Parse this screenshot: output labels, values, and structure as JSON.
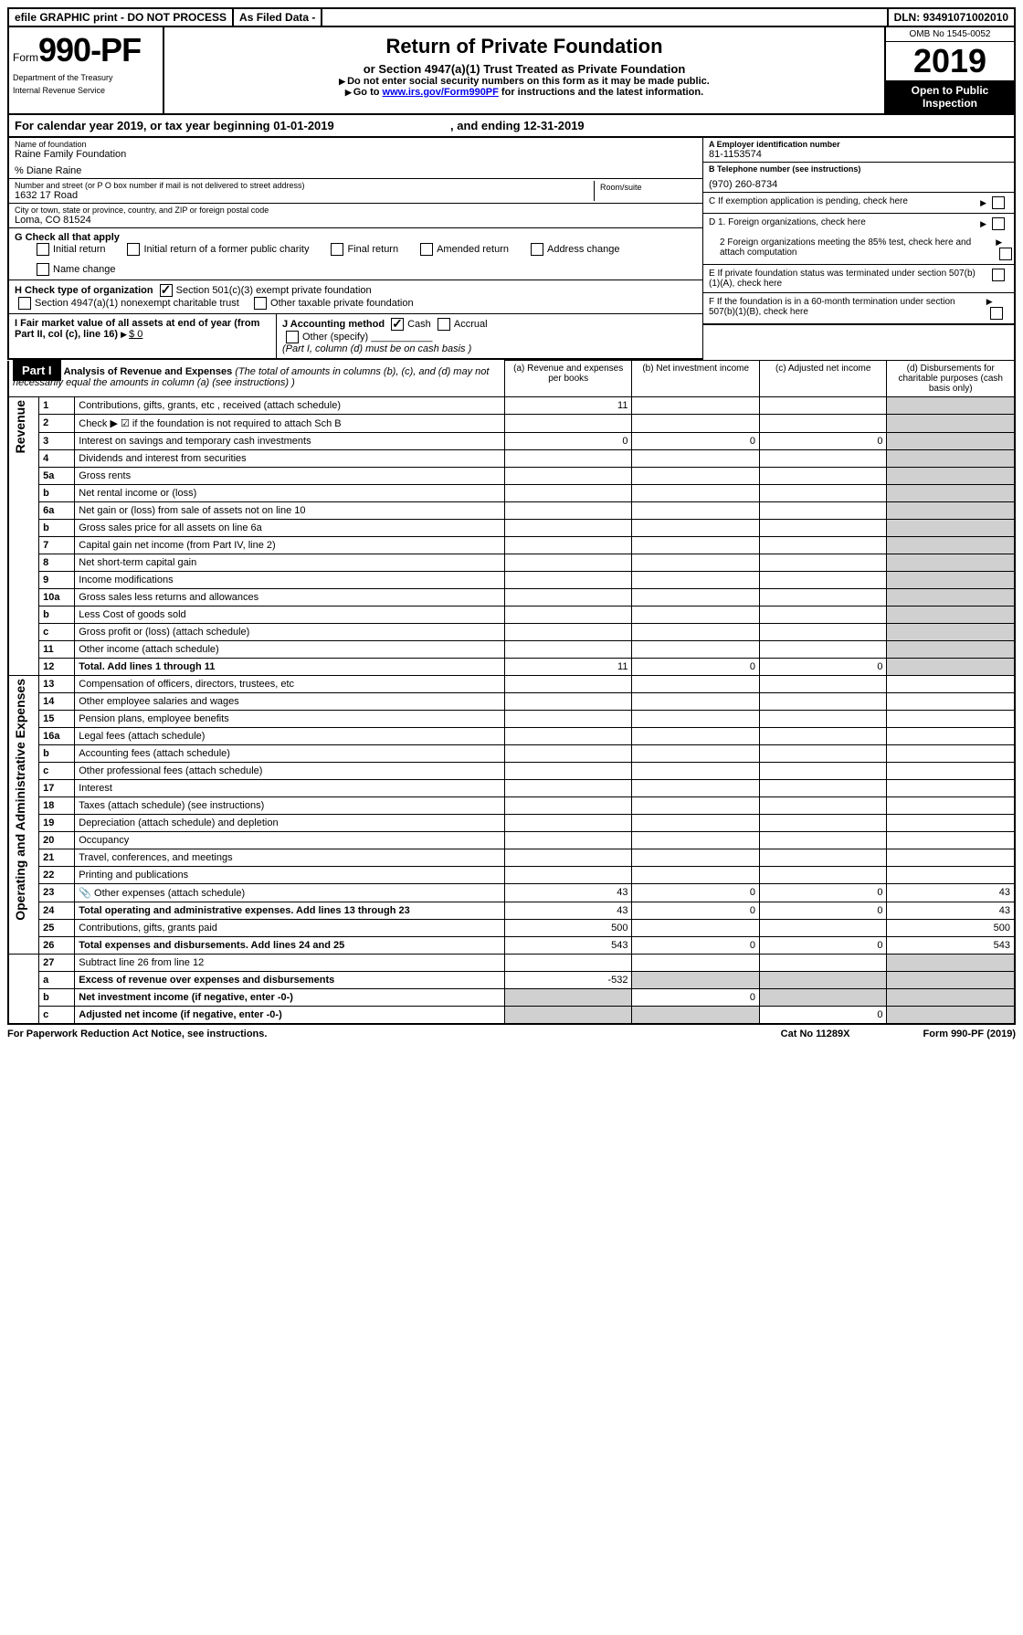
{
  "top": {
    "efile": "efile GRAPHIC print - DO NOT PROCESS",
    "asfiled": "As Filed Data -",
    "dln": "DLN: 93491071002010"
  },
  "header": {
    "form_prefix": "Form",
    "form_number": "990-PF",
    "dept1": "Department of the Treasury",
    "dept2": "Internal Revenue Service",
    "title": "Return of Private Foundation",
    "subtitle": "or Section 4947(a)(1) Trust Treated as Private Foundation",
    "instr1": "Do not enter social security numbers on this form as it may be made public.",
    "instr2_a": "Go to ",
    "instr2_link": "www.irs.gov/Form990PF",
    "instr2_b": " for instructions and the latest information.",
    "omb": "OMB No 1545-0052",
    "year": "2019",
    "open": "Open to Public Inspection"
  },
  "cal": {
    "text_a": "For calendar year 2019, or tax year beginning ",
    "begin": "01-01-2019",
    "text_b": ", and ending ",
    "end": "12-31-2019"
  },
  "name": {
    "label": "Name of foundation",
    "value": "Raine Family Foundation",
    "co": "% Diane Raine"
  },
  "address": {
    "label": "Number and street (or P O  box number if mail is not delivered to street address)",
    "value": "1632 17 Road",
    "room_label": "Room/suite"
  },
  "city": {
    "label": "City or town, state or province, country, and ZIP or foreign postal code",
    "value": "Loma, CO  81524"
  },
  "ein": {
    "label": "A Employer identification number",
    "value": "81-1153574"
  },
  "tel": {
    "label": "B Telephone number (see instructions)",
    "value": "(970) 260-8734"
  },
  "boxC": "C If exemption application is pending, check here",
  "boxD1": "D 1. Foreign organizations, check here",
  "boxD2": "2 Foreign organizations meeting the 85% test, check here and attach computation",
  "boxE": "E  If private foundation status was terminated under section 507(b)(1)(A), check here",
  "boxF": "F  If the foundation is in a 60-month termination under section 507(b)(1)(B), check here",
  "g": {
    "label": "G Check all that apply",
    "opts": [
      "Initial return",
      "Initial return of a former public charity",
      "Final return",
      "Amended return",
      "Address change",
      "Name change"
    ]
  },
  "h": {
    "label": "H Check type of organization",
    "opt1": "Section 501(c)(3) exempt private foundation",
    "opt2": "Section 4947(a)(1) nonexempt charitable trust",
    "opt3": "Other taxable private foundation"
  },
  "i": {
    "label": "I Fair market value of all assets at end of year (from Part II, col  (c), line 16)",
    "value": "$  0"
  },
  "j": {
    "label": "J Accounting method",
    "cash": "Cash",
    "accrual": "Accrual",
    "other": "Other (specify)",
    "note": "(Part I, column (d) must be on cash basis )"
  },
  "part1": {
    "label": "Part I",
    "title": "Analysis of Revenue and Expenses",
    "desc": " (The total of amounts in columns (b), (c), and (d) may not necessarily equal the amounts in column (a) (see instructions) )"
  },
  "cols": {
    "a": "(a) Revenue and expenses per books",
    "b": "(b) Net investment income",
    "c": "(c) Adjusted net income",
    "d": "(d) Disbursements for charitable purposes (cash basis only)"
  },
  "sections": {
    "revenue": "Revenue",
    "expenses": "Operating and Administrative Expenses"
  },
  "rows": [
    {
      "n": "1",
      "t": "Contributions, gifts, grants, etc , received (attach schedule)",
      "a": "11"
    },
    {
      "n": "2",
      "t": "Check ▶ ☑ if the foundation is not required to attach Sch  B"
    },
    {
      "n": "3",
      "t": "Interest on savings and temporary cash investments",
      "a": "0",
      "b": "0",
      "c": "0"
    },
    {
      "n": "4",
      "t": "Dividends and interest from securities"
    },
    {
      "n": "5a",
      "t": "Gross rents"
    },
    {
      "n": "b",
      "t": "Net rental income or (loss)"
    },
    {
      "n": "6a",
      "t": "Net gain or (loss) from sale of assets not on line 10"
    },
    {
      "n": "b",
      "t": "Gross sales price for all assets on line 6a"
    },
    {
      "n": "7",
      "t": "Capital gain net income (from Part IV, line 2)"
    },
    {
      "n": "8",
      "t": "Net short-term capital gain"
    },
    {
      "n": "9",
      "t": "Income modifications"
    },
    {
      "n": "10a",
      "t": "Gross sales less returns and allowances"
    },
    {
      "n": "b",
      "t": "Less  Cost of goods sold"
    },
    {
      "n": "c",
      "t": "Gross profit or (loss) (attach schedule)"
    },
    {
      "n": "11",
      "t": "Other income (attach schedule)"
    },
    {
      "n": "12",
      "t": "Total. Add lines 1 through 11",
      "a": "11",
      "b": "0",
      "c": "0",
      "bold": true
    }
  ],
  "exp_rows": [
    {
      "n": "13",
      "t": "Compensation of officers, directors, trustees, etc"
    },
    {
      "n": "14",
      "t": "Other employee salaries and wages"
    },
    {
      "n": "15",
      "t": "Pension plans, employee benefits"
    },
    {
      "n": "16a",
      "t": "Legal fees (attach schedule)"
    },
    {
      "n": "b",
      "t": "Accounting fees (attach schedule)"
    },
    {
      "n": "c",
      "t": "Other professional fees (attach schedule)"
    },
    {
      "n": "17",
      "t": "Interest"
    },
    {
      "n": "18",
      "t": "Taxes (attach schedule) (see instructions)"
    },
    {
      "n": "19",
      "t": "Depreciation (attach schedule) and depletion"
    },
    {
      "n": "20",
      "t": "Occupancy"
    },
    {
      "n": "21",
      "t": "Travel, conferences, and meetings"
    },
    {
      "n": "22",
      "t": "Printing and publications"
    },
    {
      "n": "23",
      "t": "Other expenses (attach schedule)",
      "a": "43",
      "b": "0",
      "c": "0",
      "d": "43",
      "icon": true
    },
    {
      "n": "24",
      "t": "Total operating and administrative expenses. Add lines 13 through 23",
      "a": "43",
      "b": "0",
      "c": "0",
      "d": "43",
      "bold": true
    },
    {
      "n": "25",
      "t": "Contributions, gifts, grants paid",
      "a": "500",
      "d": "500"
    },
    {
      "n": "26",
      "t": "Total expenses and disbursements. Add lines 24 and 25",
      "a": "543",
      "b": "0",
      "c": "0",
      "d": "543",
      "bold": true
    }
  ],
  "bottom_rows": [
    {
      "n": "27",
      "t": "Subtract line 26 from line 12"
    },
    {
      "n": "a",
      "t": "Excess of revenue over expenses and disbursements",
      "a": "-532",
      "bold": true
    },
    {
      "n": "b",
      "t": "Net investment income (if negative, enter -0-)",
      "b": "0",
      "bold": true
    },
    {
      "n": "c",
      "t": "Adjusted net income (if negative, enter -0-)",
      "c": "0",
      "bold": true
    }
  ],
  "footer": {
    "left": "For Paperwork Reduction Act Notice, see instructions.",
    "mid": "Cat  No  11289X",
    "right": "Form 990-PF (2019)"
  }
}
